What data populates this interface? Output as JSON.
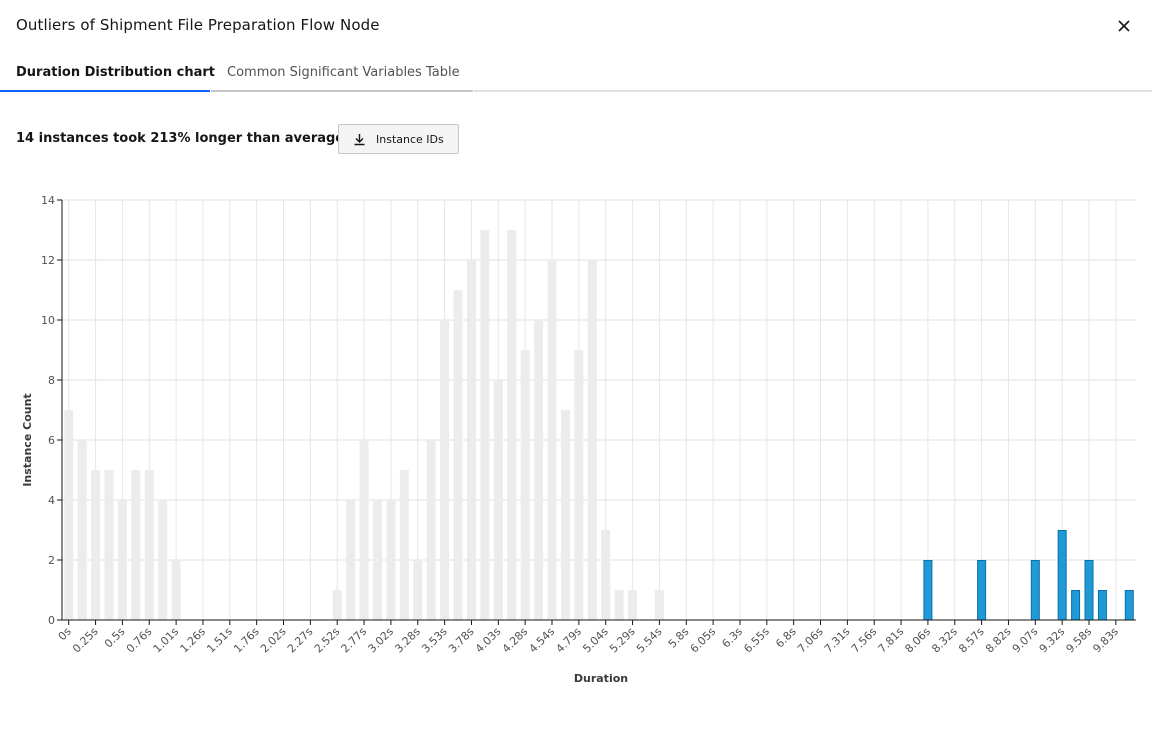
{
  "modal": {
    "title": "Outliers of Shipment File Preparation Flow Node",
    "close_icon": "close-icon"
  },
  "tabs": [
    {
      "label": "Duration Distribution chart",
      "selected": true
    },
    {
      "label": "Common Significant Variables Table",
      "selected": false
    }
  ],
  "summary": {
    "text": "14 instances took 213% longer than average.",
    "download_label": "Instance IDs",
    "download_icon": "download-icon"
  },
  "colors": {
    "normal_bar": "#ececec",
    "outlier_bar": "#1f9ad6",
    "outlier_border": "#0b6fa6",
    "tab_accent": "#0f62fe"
  },
  "chart_data": {
    "type": "bar",
    "xlabel": "Duration",
    "ylabel": "Instance Count",
    "ylim": [
      0,
      14
    ],
    "yticks": [
      0,
      2,
      4,
      6,
      8,
      10,
      12,
      14
    ],
    "grid": true,
    "legend": "none",
    "bin_count": 80,
    "x_tick_labels": [
      "0s",
      "0.25s",
      "0.5s",
      "0.76s",
      "1.01s",
      "1.26s",
      "1.51s",
      "1.76s",
      "2.02s",
      "2.27s",
      "2.52s",
      "2.77s",
      "3.02s",
      "3.28s",
      "3.53s",
      "3.78s",
      "4.03s",
      "4.28s",
      "4.54s",
      "4.79s",
      "5.04s",
      "5.29s",
      "5.54s",
      "5.8s",
      "6.05s",
      "6.3s",
      "6.55s",
      "6.8s",
      "7.06s",
      "7.31s",
      "7.56s",
      "7.81s",
      "8.06s",
      "8.32s",
      "8.57s",
      "8.82s",
      "9.07s",
      "9.32s",
      "9.58s",
      "9.83s"
    ],
    "series": [
      {
        "name": "",
        "values": [
          7,
          6,
          5,
          5,
          4,
          5,
          5,
          4,
          2,
          0,
          0,
          0,
          0,
          0,
          0,
          0,
          0,
          0,
          0,
          0,
          1,
          4,
          6,
          4,
          4,
          5,
          2,
          6,
          10,
          11,
          12,
          13,
          8,
          13,
          9,
          10,
          12,
          7,
          9,
          12,
          3,
          1,
          1,
          0,
          1,
          0,
          0,
          0,
          0,
          0,
          0,
          0,
          0,
          0,
          0,
          0,
          0,
          0,
          0,
          0,
          0,
          0,
          0,
          0,
          0,
          0,
          0,
          0,
          0,
          0,
          0,
          0,
          0,
          0,
          0,
          0,
          0,
          0,
          0,
          0
        ]
      },
      {
        "name": "",
        "values": [
          0,
          0,
          0,
          0,
          0,
          0,
          0,
          0,
          0,
          0,
          0,
          0,
          0,
          0,
          0,
          0,
          0,
          0,
          0,
          0,
          0,
          0,
          0,
          0,
          0,
          0,
          0,
          0,
          0,
          0,
          0,
          0,
          0,
          0,
          0,
          0,
          0,
          0,
          0,
          0,
          0,
          0,
          0,
          0,
          0,
          0,
          0,
          0,
          0,
          0,
          0,
          0,
          0,
          0,
          0,
          0,
          0,
          0,
          0,
          0,
          0,
          0,
          0,
          0,
          2,
          0,
          0,
          0,
          2,
          0,
          0,
          0,
          2,
          0,
          3,
          1,
          2,
          1,
          0,
          1
        ]
      }
    ]
  }
}
